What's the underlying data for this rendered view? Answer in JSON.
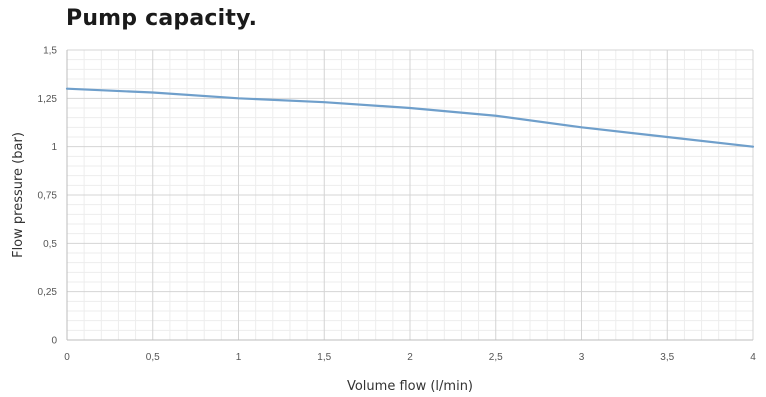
{
  "chart_data": {
    "type": "line",
    "title": "Pump capacity.",
    "xlabel": "Volume flow (l/min)",
    "ylabel": "Flow pressure (bar)",
    "xlim": [
      0,
      4
    ],
    "ylim": [
      0,
      1.5
    ],
    "grid": true,
    "x_ticks": [
      "0",
      "0,5",
      "1",
      "1,5",
      "2",
      "2,5",
      "3",
      "3,5",
      "4"
    ],
    "y_ticks": [
      "0",
      "0,25",
      "0,5",
      "0,75",
      "1",
      "1,25",
      "1,5"
    ],
    "series": [
      {
        "color": "#6f9fcb",
        "x": [
          0,
          0.5,
          1,
          1.5,
          2,
          2.5,
          3,
          3.5,
          4
        ],
        "y": [
          1.3,
          1.28,
          1.25,
          1.23,
          1.2,
          1.16,
          1.1,
          1.05,
          1.0
        ]
      }
    ]
  }
}
